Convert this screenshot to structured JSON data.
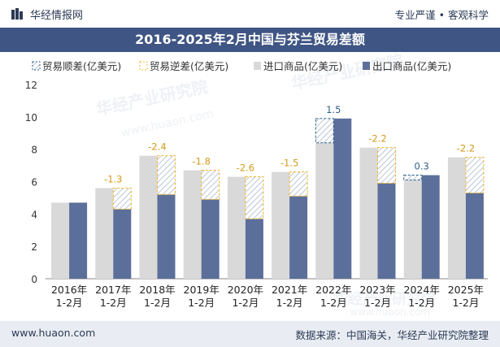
{
  "header": {
    "brand": "华经情报网",
    "tagline": "专业严谨 • 客观科学",
    "title": "2016-2025年2月中国与芬兰贸易差额"
  },
  "footer": {
    "website": "www.huaon.com",
    "source": "数据来源：中国海关，华经产业研究院整理"
  },
  "watermark": {
    "text": "华经产业研究院",
    "url": "www.huaon.com"
  },
  "colors": {
    "title_bg": "#3f5584",
    "import": "#d9d9d9",
    "export": "#5b6f9a",
    "surplus": "#2c5f8a",
    "deficit": "#f0b429",
    "label_surplus": "#2c5f8a",
    "label_deficit": "#d49a1a"
  },
  "chart_data": {
    "type": "bar",
    "title": "2016-2025年2月中国与芬兰贸易差额",
    "categories": [
      "2016年 1-2月",
      "2017年 1-2月",
      "2018年 1-2月",
      "2019年 1-2月",
      "2020年 1-2月",
      "2021年 1-2月",
      "2022年 1-2月",
      "2023年 1-2月",
      "2024年 1-2月",
      "2025年 1-2月"
    ],
    "category_lines": [
      [
        "2016年",
        "1-2月"
      ],
      [
        "2017年",
        "1-2月"
      ],
      [
        "2018年",
        "1-2月"
      ],
      [
        "2019年",
        "1-2月"
      ],
      [
        "2020年",
        "1-2月"
      ],
      [
        "2021年",
        "1-2月"
      ],
      [
        "2022年",
        "1-2月"
      ],
      [
        "2023年",
        "1-2月"
      ],
      [
        "2024年",
        "1-2月"
      ],
      [
        "2025年",
        "1-2月"
      ]
    ],
    "series": [
      {
        "name": "进口商品(亿美元)",
        "values": [
          4.7,
          5.6,
          7.6,
          6.7,
          6.3,
          6.6,
          8.4,
          8.1,
          6.1,
          7.5
        ]
      },
      {
        "name": "出口商品(亿美元)",
        "values": [
          4.7,
          4.3,
          5.2,
          4.9,
          3.7,
          5.1,
          9.9,
          5.9,
          6.4,
          5.3
        ]
      }
    ],
    "balance": [
      null,
      -1.3,
      -2.4,
      -1.8,
      -2.6,
      -1.5,
      1.5,
      -2.2,
      0.3,
      -2.2
    ],
    "balance_labels": [
      "",
      "-1.3",
      "-2.4",
      "-1.8",
      "-2.6",
      "-1.5",
      "1.5",
      "-2.2",
      "0.3",
      "-2.2"
    ],
    "legend": [
      "贸易顺差(亿美元)",
      "贸易逆差(亿美元)",
      "进口商品(亿美元)",
      "出口商品(亿美元)"
    ],
    "legend_position": "top",
    "ylim": [
      0,
      12
    ],
    "yticks": [
      0,
      2,
      4,
      6,
      8,
      10,
      12
    ],
    "ytick_labels": [
      "0",
      "2",
      "4",
      "6",
      "8",
      "10",
      "12"
    ],
    "xlabel": "",
    "ylabel": ""
  }
}
